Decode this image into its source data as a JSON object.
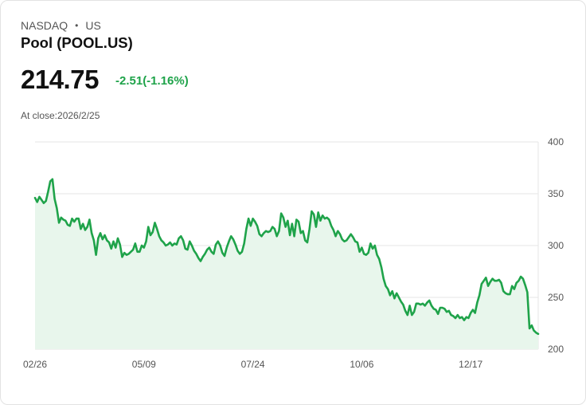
{
  "header": {
    "exchange": "NASDAQ",
    "separator": "•",
    "region": "US",
    "title": "Pool (POOL.US)",
    "price": "214.75",
    "change": "-2.51(-1.16%)",
    "close_label": "At close:2026/2/25"
  },
  "colors": {
    "line": "#1fa34a",
    "fill": "#e8f6ec",
    "change_text": "#1fa34a",
    "grid": "#e6e6e6"
  },
  "chart_data": {
    "type": "area",
    "title": "",
    "xlabel": "",
    "ylabel": "",
    "ylim": [
      200,
      400
    ],
    "yticks": [
      400,
      350,
      300,
      250,
      200
    ],
    "y_axis_side": "right",
    "grid": true,
    "x_tick_labels": [
      "02/26",
      "05/09",
      "07/24",
      "10/06",
      "12/17"
    ],
    "x_tick_index": [
      0,
      50,
      100,
      150,
      200
    ],
    "series": [
      {
        "values": [
          346,
          342,
          347,
          344,
          341,
          343,
          352,
          362,
          364,
          345,
          336,
          322,
          327,
          325,
          324,
          320,
          319,
          326,
          323,
          326,
          326,
          316,
          321,
          315,
          318,
          325,
          312,
          305,
          291,
          307,
          312,
          306,
          310,
          305,
          303,
          297,
          304,
          298,
          307,
          301,
          289,
          293,
          291,
          292,
          294,
          296,
          302,
          294,
          294,
          300,
          298,
          304,
          318,
          310,
          313,
          322,
          316,
          309,
          305,
          303,
          300,
          301,
          303,
          300,
          302,
          301,
          307,
          309,
          305,
          297,
          296,
          304,
          300,
          295,
          292,
          288,
          285,
          289,
          292,
          296,
          298,
          294,
          292,
          301,
          304,
          300,
          293,
          290,
          298,
          304,
          309,
          306,
          301,
          295,
          292,
          294,
          302,
          316,
          326,
          319,
          326,
          323,
          319,
          311,
          309,
          312,
          314,
          313,
          314,
          318,
          316,
          309,
          314,
          331,
          327,
          318,
          324,
          310,
          321,
          309,
          325,
          323,
          312,
          314,
          305,
          303,
          316,
          333,
          330,
          318,
          332,
          324,
          329,
          326,
          327,
          325,
          319,
          315,
          309,
          314,
          311,
          306,
          304,
          305,
          308,
          311,
          308,
          304,
          303,
          294,
          298,
          292,
          291,
          293,
          302,
          297,
          300,
          291,
          287,
          279,
          268,
          261,
          258,
          252,
          256,
          249,
          254,
          250,
          246,
          243,
          237,
          233,
          242,
          233,
          236,
          244,
          244,
          243,
          244,
          242,
          245,
          247,
          242,
          239,
          238,
          234,
          240,
          240,
          239,
          236,
          237,
          233,
          232,
          230,
          233,
          230,
          231,
          228,
          231,
          230,
          235,
          238,
          235,
          245,
          252,
          263,
          266,
          269,
          261,
          265,
          268,
          266,
          266,
          267,
          264,
          256,
          254,
          253,
          253,
          261,
          258,
          264,
          266,
          270,
          268,
          262,
          255,
          220,
          223,
          218,
          216,
          214.75
        ]
      }
    ]
  }
}
